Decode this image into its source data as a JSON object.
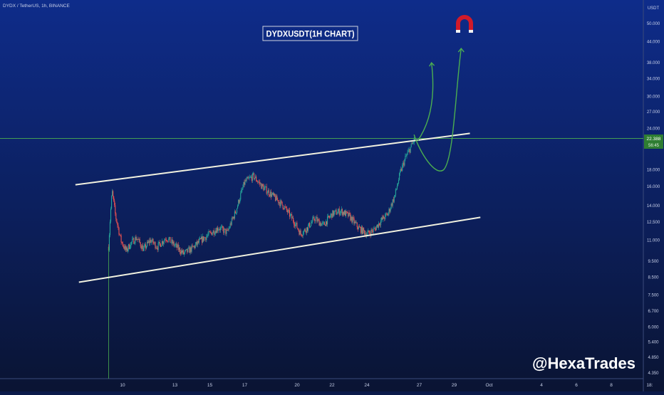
{
  "header": {
    "symbol_line": "DYDX / TetherUS, 1h, BINANCE"
  },
  "title": "DYDXUSDT(1H CHART)",
  "watermark": "@HexaTrades",
  "price_axis": {
    "currency": "USDT",
    "labels": [
      "50.000",
      "44.000",
      "38.000",
      "34.000",
      "30.000",
      "27.000",
      "24.000",
      "18.000",
      "16.000",
      "14.000",
      "12.500",
      "11.000",
      "9.500",
      "8.500",
      "7.500",
      "6.700",
      "6.000",
      "5.400",
      "4.850",
      "4.350"
    ],
    "current_price": "22.388",
    "countdown": "56:45"
  },
  "time_axis": {
    "labels": [
      "10",
      "13",
      "15",
      "17",
      "20",
      "22",
      "24",
      "27",
      "29",
      "Oct",
      "4",
      "6",
      "8",
      "18:"
    ]
  },
  "colors": {
    "background_top": "#0d2a84",
    "background_bottom": "#0b1638",
    "candle_up": "#26a69a",
    "candle_down": "#ef5350",
    "channel_line": "#f2f2e0",
    "projection": "#4caf50",
    "price_tag": "#2e7d32",
    "magnet": "#d11a2a"
  },
  "icon": "magnet-icon",
  "chart_data": {
    "type": "candlestick",
    "title": "DYDXUSDT(1H CHART)",
    "symbol": "DYDX / TetherUS",
    "timeframe": "1h",
    "exchange": "BINANCE",
    "y_scale": "log",
    "ylim": [
      4.2,
      60
    ],
    "current_price": 22.388,
    "x_ticks": [
      "10",
      "13",
      "15",
      "17",
      "20",
      "22",
      "24",
      "27",
      "29",
      "Oct",
      "4",
      "6",
      "8"
    ],
    "price_path": [
      [
        9.2,
        10.5
      ],
      [
        9.4,
        15.5
      ],
      [
        9.6,
        13.0
      ],
      [
        9.9,
        11.0
      ],
      [
        10.2,
        10.2
      ],
      [
        10.5,
        10.8
      ],
      [
        10.8,
        11.2
      ],
      [
        11.2,
        10.3
      ],
      [
        11.6,
        11.0
      ],
      [
        12.0,
        10.5
      ],
      [
        12.5,
        11.2
      ],
      [
        13.0,
        10.6
      ],
      [
        13.5,
        10.0
      ],
      [
        14.0,
        10.4
      ],
      [
        14.5,
        11.0
      ],
      [
        15.0,
        11.5
      ],
      [
        15.5,
        12.0
      ],
      [
        16.0,
        11.6
      ],
      [
        16.5,
        13.5
      ],
      [
        17.0,
        16.5
      ],
      [
        17.5,
        17.2
      ],
      [
        18.0,
        16.0
      ],
      [
        18.6,
        15.0
      ],
      [
        19.2,
        14.0
      ],
      [
        19.8,
        12.6
      ],
      [
        20.2,
        11.5
      ],
      [
        20.6,
        12.0
      ],
      [
        21.0,
        12.8
      ],
      [
        21.5,
        12.2
      ],
      [
        22.0,
        13.2
      ],
      [
        22.5,
        13.5
      ],
      [
        23.0,
        13.0
      ],
      [
        23.5,
        12.0
      ],
      [
        24.0,
        11.5
      ],
      [
        24.4,
        11.8
      ],
      [
        24.8,
        12.6
      ],
      [
        25.2,
        13.2
      ],
      [
        25.6,
        15.0
      ],
      [
        25.9,
        17.5
      ],
      [
        26.2,
        19.5
      ],
      [
        26.5,
        21.0
      ],
      [
        26.75,
        22.4
      ]
    ],
    "channel": {
      "upper": [
        [
          7.3,
          16.2
        ],
        [
          29.9,
          23.2
        ]
      ],
      "lower": [
        [
          7.5,
          8.2
        ],
        [
          30.5,
          12.9
        ]
      ]
    },
    "horizontal_level": 22.388,
    "projection_paths": {
      "short": [
        [
          26.9,
          22.0
        ],
        [
          27.7,
          38.0
        ]
      ],
      "long": [
        [
          26.7,
          23.0
        ],
        [
          28.4,
          18.0
        ],
        [
          29.4,
          42.0
        ]
      ]
    }
  }
}
